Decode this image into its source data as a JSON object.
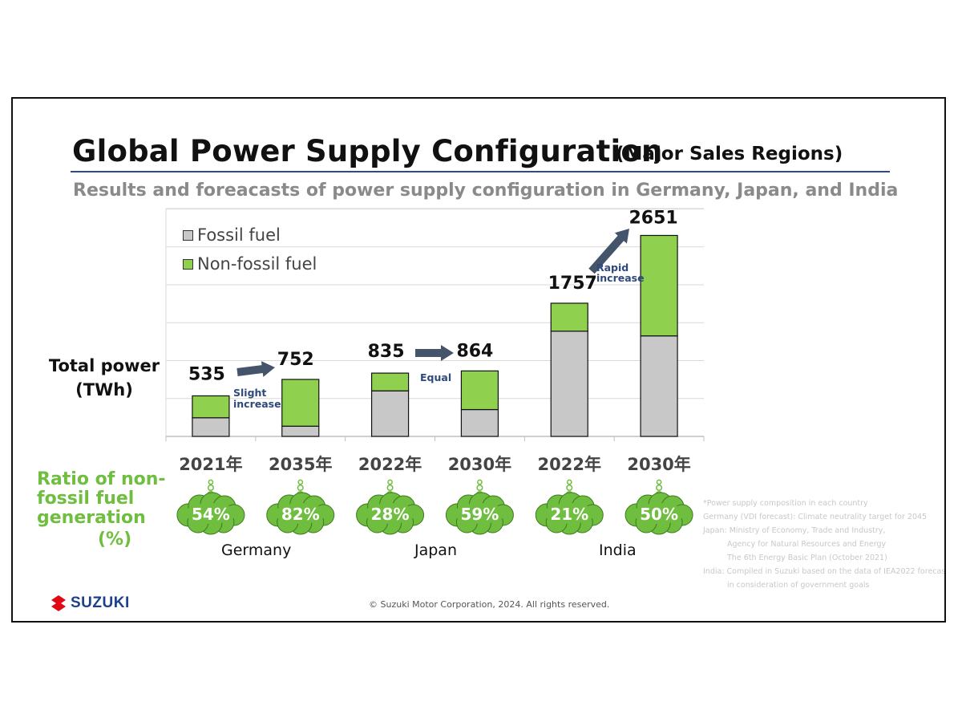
{
  "title": "Global Power Supply Configuration",
  "title_paren": "(Major Sales Regions)",
  "subtitle": "Results and foreacasts of power supply configuration in Germany, Japan, and India",
  "y_axis_title": [
    "Total power",
    "(TWh)"
  ],
  "ratio_title": [
    "Ratio of non-",
    "fossil fuel",
    "generation"
  ],
  "ratio_unit": "(%)",
  "countries": [
    "Germany",
    "Japan",
    "India"
  ],
  "annotations": {
    "germany": [
      "Slight",
      "increase"
    ],
    "japan": [
      "Equal"
    ],
    "india": [
      "Rapid",
      "increase"
    ]
  },
  "notes": [
    "*Power supply composition in each country",
    "Germany (VDI forecast): Climate neutrality target for 2045",
    "Japan: Ministry of Economy, Trade and Industry,",
    "Agency for Natural Resources and Energy",
    "The 6th Energy Basic Plan (October 2021)",
    "India: Compiled in Suzuki based on the data of IEA2022 forecast,",
    "in consideration of government goals"
  ],
  "logo_text": "SUZUKI",
  "copyright": "© Suzuki Motor Corporation, 2024. All rights reserved.",
  "colors": {
    "fossil": "#c8c8c8",
    "non_fossil": "#8fd14f",
    "arrow": "#44546a",
    "ratio_green": "#6fbe3f",
    "title_rule": "#2b4a8f",
    "logo_red": "#e30613",
    "logo_blue": "#1d3f8f"
  },
  "chart_data": {
    "type": "bar",
    "stacked": true,
    "categories": [
      "2021年",
      "2035年",
      "2022年",
      "2030年",
      "2022年",
      "2030年"
    ],
    "groups": [
      "Germany",
      "Germany",
      "Japan",
      "Japan",
      "India",
      "India"
    ],
    "series": [
      {
        "name": "Fossil fuel",
        "values": [
          246,
          135,
          601,
          354,
          1388,
          1326
        ]
      },
      {
        "name": "Non-fossil fuel",
        "values": [
          289,
          617,
          234,
          510,
          369,
          1325
        ]
      }
    ],
    "totals": [
      535,
      752,
      835,
      864,
      1757,
      2651
    ],
    "non_fossil_ratio_pct": [
      54,
      82,
      28,
      59,
      21,
      50
    ],
    "ylabel": "Total power (TWh)",
    "ylim": [
      0,
      3000
    ],
    "grid": true,
    "legend": "top-left"
  }
}
